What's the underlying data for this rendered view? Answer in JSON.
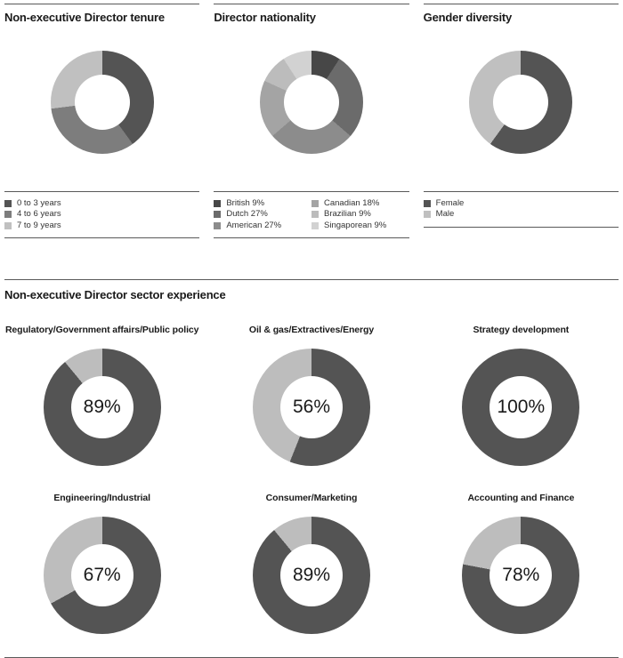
{
  "page": {
    "sector_section_title": "Non-executive Director sector experience"
  },
  "chart_data": [
    {
      "id": "tenure",
      "type": "pie",
      "donut": true,
      "title": "Non-executive Director tenure",
      "labels": [
        "0 to 3 years",
        "4 to 6 years",
        "7 to 9 years"
      ],
      "values": [
        40,
        33,
        27
      ],
      "colors": [
        "#545454",
        "#7d7d7d",
        "#c0c0c0"
      ],
      "legend": [
        "0 to 3 years",
        "4 to 6 years",
        "7 to 9 years"
      ],
      "legend_position": "bottom"
    },
    {
      "id": "nationality",
      "type": "pie",
      "donut": true,
      "title": "Director nationality",
      "labels": [
        "British",
        "Dutch",
        "American",
        "Canadian",
        "Brazilian",
        "Singaporean"
      ],
      "values": [
        9,
        27,
        27,
        18,
        9,
        9
      ],
      "colors": [
        "#474747",
        "#6b6b6b",
        "#8c8c8c",
        "#a4a4a4",
        "#bcbcbc",
        "#d2d2d2"
      ],
      "legend": [
        "British 9%",
        "Dutch 27%",
        "American 27%",
        "Canadian 18%",
        "Brazilian 9%",
        "Singaporean 9%"
      ],
      "legend_position": "bottom"
    },
    {
      "id": "gender",
      "type": "pie",
      "donut": true,
      "title": "Gender diversity",
      "labels": [
        "Female",
        "Male"
      ],
      "values": [
        60,
        40
      ],
      "colors": [
        "#545454",
        "#c0c0c0"
      ],
      "legend": [
        "Female",
        "Male"
      ],
      "legend_position": "bottom"
    },
    {
      "id": "regulatory",
      "type": "pie",
      "donut": true,
      "title": "Regulatory/Government affairs/Public policy",
      "value": 89,
      "center_label": "89%",
      "values": [
        89,
        11
      ],
      "colors": [
        "#545454",
        "#bdbdbd"
      ]
    },
    {
      "id": "oil-gas",
      "type": "pie",
      "donut": true,
      "title": "Oil & gas/Extractives/Energy",
      "value": 56,
      "center_label": "56%",
      "values": [
        56,
        44
      ],
      "colors": [
        "#545454",
        "#bdbdbd"
      ]
    },
    {
      "id": "strategy",
      "type": "pie",
      "donut": true,
      "title": "Strategy development",
      "value": 100,
      "center_label": "100%",
      "values": [
        100,
        0
      ],
      "colors": [
        "#545454",
        "#bdbdbd"
      ]
    },
    {
      "id": "engineering",
      "type": "pie",
      "donut": true,
      "title": "Engineering/Industrial",
      "value": 67,
      "center_label": "67%",
      "values": [
        67,
        33
      ],
      "colors": [
        "#545454",
        "#bdbdbd"
      ]
    },
    {
      "id": "consumer",
      "type": "pie",
      "donut": true,
      "title": "Consumer/Marketing",
      "value": 89,
      "center_label": "89%",
      "values": [
        89,
        11
      ],
      "colors": [
        "#545454",
        "#bdbdbd"
      ]
    },
    {
      "id": "accounting",
      "type": "pie",
      "donut": true,
      "title": "Accounting and Finance",
      "value": 78,
      "center_label": "78%",
      "values": [
        78,
        22
      ],
      "colors": [
        "#545454",
        "#bdbdbd"
      ]
    }
  ]
}
